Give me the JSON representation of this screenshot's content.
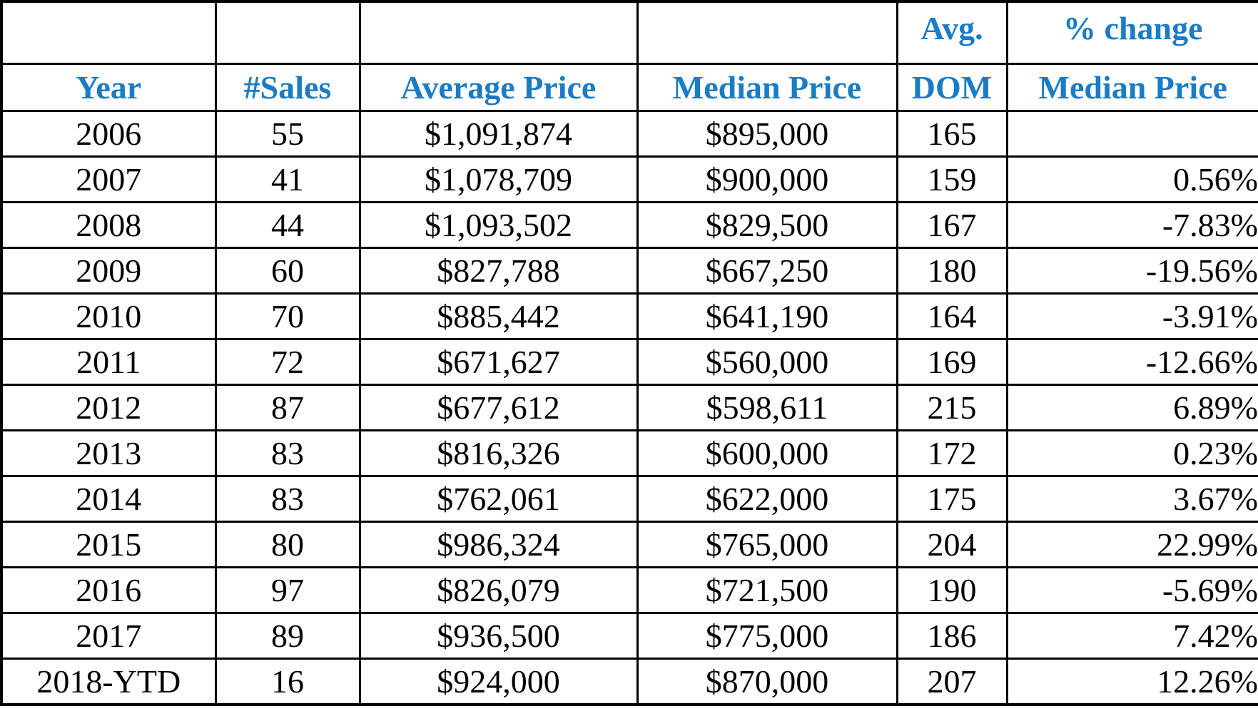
{
  "accent_color": "#1a7cc4",
  "table": {
    "headers_top": [
      "",
      "",
      "",
      "",
      "Avg.",
      "% change"
    ],
    "headers_bottom": [
      "Year",
      "#Sales",
      "Average Price",
      "Median Price",
      "DOM",
      "Median Price"
    ],
    "rows": [
      [
        "2006",
        "55",
        "$1,091,874",
        "$895,000",
        "165",
        ""
      ],
      [
        "2007",
        "41",
        "$1,078,709",
        "$900,000",
        "159",
        "0.56%"
      ],
      [
        "2008",
        "44",
        "$1,093,502",
        "$829,500",
        "167",
        "-7.83%"
      ],
      [
        "2009",
        "60",
        "$827,788",
        "$667,250",
        "180",
        "-19.56%"
      ],
      [
        "2010",
        "70",
        "$885,442",
        "$641,190",
        "164",
        "-3.91%"
      ],
      [
        "2011",
        "72",
        "$671,627",
        "$560,000",
        "169",
        "-12.66%"
      ],
      [
        "2012",
        "87",
        "$677,612",
        "$598,611",
        "215",
        "6.89%"
      ],
      [
        "2013",
        "83",
        "$816,326",
        "$600,000",
        "172",
        "0.23%"
      ],
      [
        "2014",
        "83",
        "$762,061",
        "$622,000",
        "175",
        "3.67%"
      ],
      [
        "2015",
        "80",
        "$986,324",
        "$765,000",
        "204",
        "22.99%"
      ],
      [
        "2016",
        "97",
        "$826,079",
        "$721,500",
        "190",
        "-5.69%"
      ],
      [
        "2017",
        "89",
        "$936,500",
        "$775,000",
        "186",
        "7.42%"
      ],
      [
        "2018-YTD",
        "16",
        "$924,000",
        "$870,000",
        "207",
        "12.26%"
      ]
    ]
  }
}
